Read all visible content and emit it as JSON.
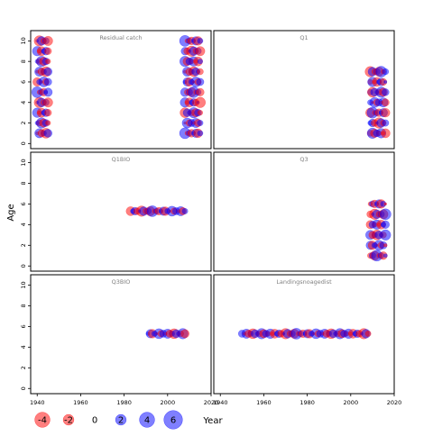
{
  "chart_data": {
    "type": "scatter",
    "subtype": "bubble",
    "x_axis_label": "Year",
    "y_axis_label": "Age",
    "xlim": [
      1937,
      2020
    ],
    "ylim": [
      -0.5,
      11
    ],
    "x_ticks": [
      1940,
      1960,
      1980,
      2000,
      2020
    ],
    "y_ticks": [
      0,
      2,
      4,
      6,
      8,
      10
    ],
    "size_legend": [
      {
        "label": "-4",
        "value": -4
      },
      {
        "label": "-2",
        "value": -2
      },
      {
        "label": "0",
        "value": 0
      },
      {
        "label": "2",
        "value": 2
      },
      {
        "label": "4",
        "value": 4
      },
      {
        "label": "6",
        "value": 6
      }
    ],
    "colors": {
      "negative": "#ff0000",
      "positive": "#0000ff"
    },
    "panels": [
      {
        "title": "Residual catch",
        "ages": [
          1,
          2,
          3,
          4,
          5,
          6,
          7,
          8,
          9,
          10
        ],
        "segments": [
          {
            "x_start": 1940,
            "x_end": 1945,
            "age_from": 1,
            "age_to": 10
          },
          {
            "x_start": 2008,
            "x_end": 2015,
            "age_from": 1,
            "age_to": 10
          }
        ]
      },
      {
        "title": "Q1",
        "ages": [
          1,
          2,
          3,
          4,
          5,
          6,
          7
        ],
        "segments": [
          {
            "x_start": 2009,
            "x_end": 2016,
            "age_from": 1,
            "age_to": 7
          }
        ]
      },
      {
        "title": "Q1BIO",
        "ages": [
          5.3
        ],
        "segments": [
          {
            "x_start": 1983,
            "x_end": 2008,
            "age_from": 5.3,
            "age_to": 5.3
          }
        ]
      },
      {
        "title": "Q3",
        "ages": [
          1,
          2,
          3,
          4,
          5,
          6
        ],
        "segments": [
          {
            "x_start": 2009,
            "x_end": 2016,
            "age_from": 1,
            "age_to": 6
          }
        ]
      },
      {
        "title": "Q3BIO",
        "ages": [
          5.3
        ],
        "segments": [
          {
            "x_start": 1991,
            "x_end": 2008,
            "age_from": 5.3,
            "age_to": 5.3
          }
        ]
      },
      {
        "title": "Landingsnoagedist",
        "ages": [
          5.3
        ],
        "segments": [
          {
            "x_start": 1950,
            "x_end": 2008,
            "age_from": 5.3,
            "age_to": 5.3
          }
        ]
      }
    ],
    "residual_pattern": [
      -0.5,
      4,
      -2.5,
      1.5,
      -4.5,
      3,
      0.8,
      -1.8,
      5,
      -3.2,
      2.3,
      -1.2,
      4.2,
      -0.7,
      -3.8,
      1.1,
      2.8,
      -2.2,
      0.4,
      -5,
      3.6,
      -1.5,
      2,
      -4,
      5.5,
      -0.9,
      1.8,
      -2.8,
      0.6,
      3.3,
      -3.5,
      1.4,
      -0.3,
      4.6,
      -2,
      2.5
    ]
  }
}
